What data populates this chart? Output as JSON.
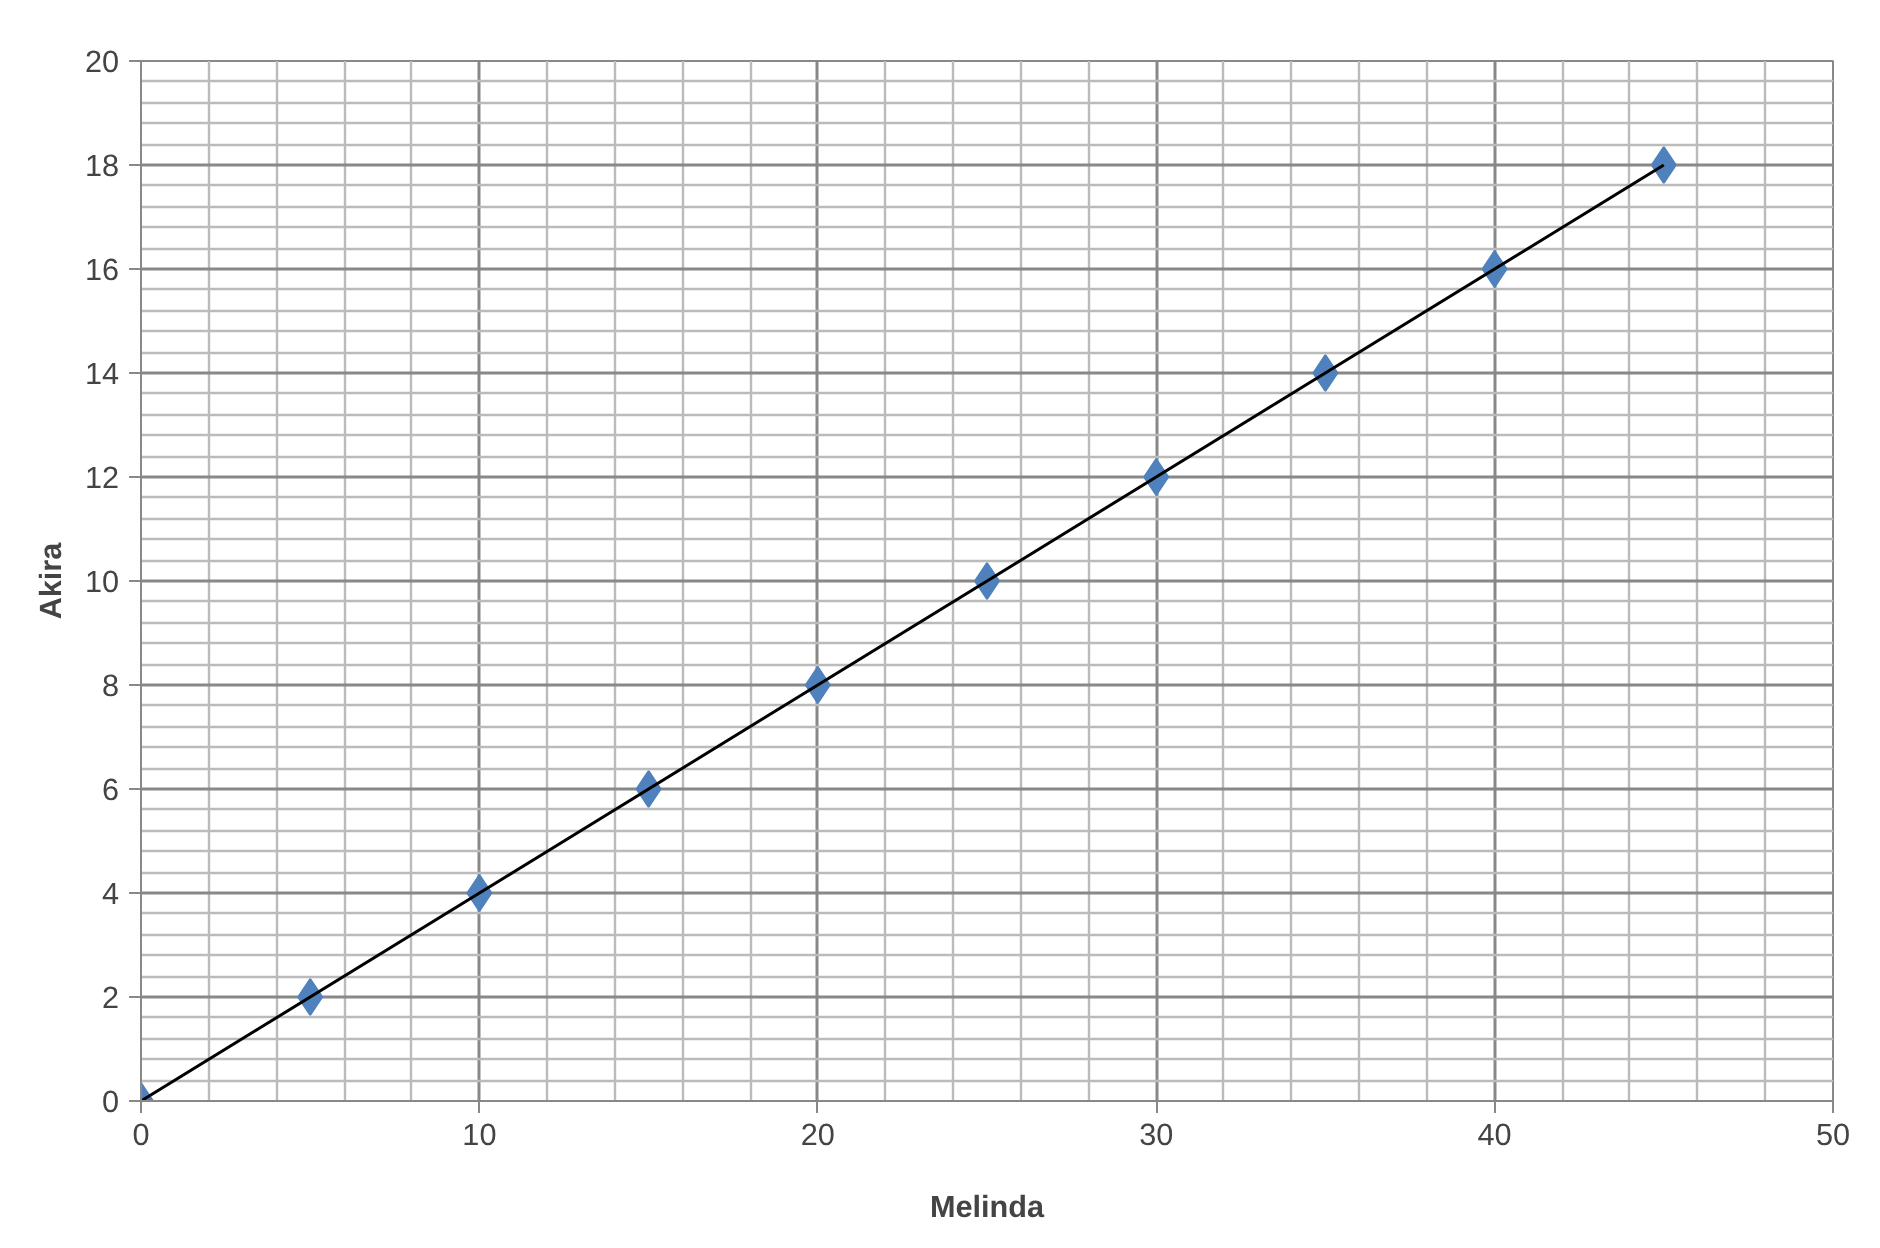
{
  "chart_data": {
    "type": "scatter",
    "xlabel": "Melinda",
    "ylabel": "Akira",
    "xlim": [
      0,
      50
    ],
    "ylim": [
      0,
      20
    ],
    "xticks": [
      0,
      10,
      20,
      30,
      40,
      50
    ],
    "yticks": [
      0,
      2,
      4,
      6,
      8,
      10,
      12,
      14,
      16,
      18,
      20
    ],
    "grid": true,
    "marker": "diamond",
    "series": [
      {
        "color": "#4f81bd",
        "x": [
          0,
          5,
          10,
          15,
          20,
          25,
          30,
          35,
          40,
          45
        ],
        "values": [
          0,
          2,
          4,
          6,
          8,
          10,
          12,
          14,
          16,
          18
        ]
      },
      {
        "type": "line",
        "color": "#000000",
        "x": [
          0,
          45
        ],
        "values": [
          0,
          18
        ],
        "marker": "none",
        "line_style": "solid"
      }
    ]
  }
}
